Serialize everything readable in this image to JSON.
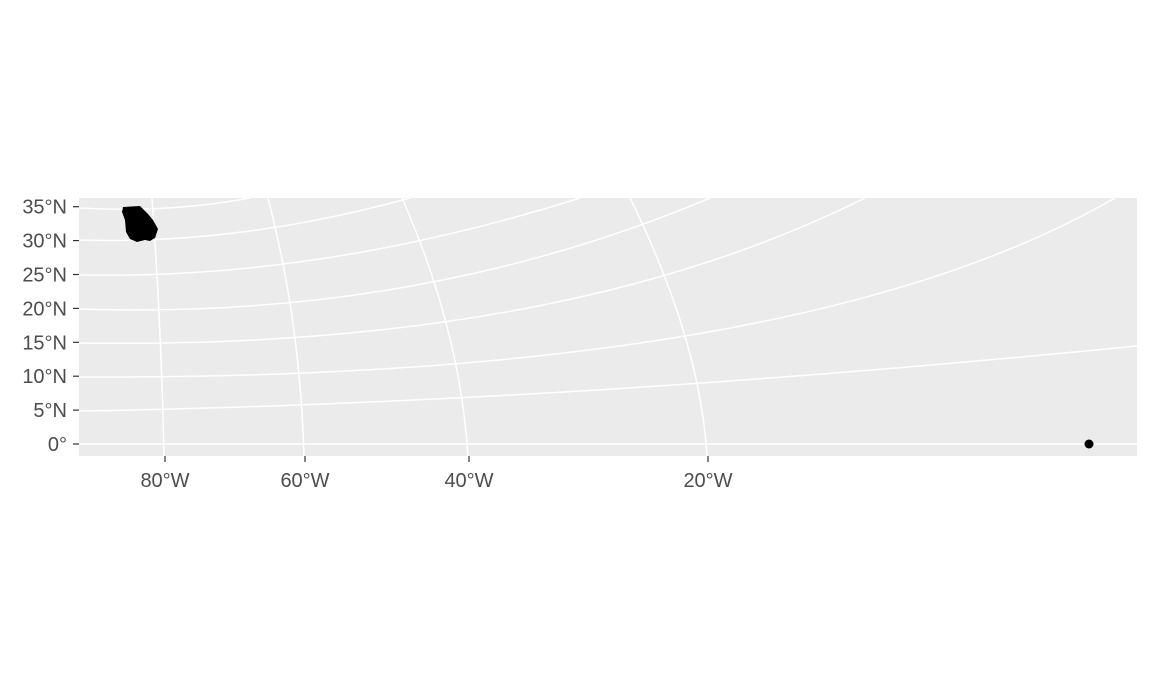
{
  "map": {
    "panel_background": "#ebebeb",
    "grid_color": "#ffffff",
    "feature_color": "#000000",
    "tick_color": "#333333",
    "label_color": "#4d4d4d",
    "y_axis": {
      "labels": [
        "35°N",
        "30°N",
        "25°N",
        "20°N",
        "15°N",
        "10°N",
        "5°N",
        "0°"
      ],
      "values": [
        35,
        30,
        25,
        20,
        15,
        10,
        5,
        0
      ]
    },
    "x_axis": {
      "labels": [
        "80°W",
        "60°W",
        "40°W",
        "20°W"
      ],
      "values": [
        -80,
        -60,
        -40,
        -20
      ]
    },
    "features": [
      {
        "name": "polygon-region",
        "type": "polygon"
      },
      {
        "name": "point-at-origin",
        "type": "point",
        "lon": 0,
        "lat": 0
      }
    ]
  }
}
